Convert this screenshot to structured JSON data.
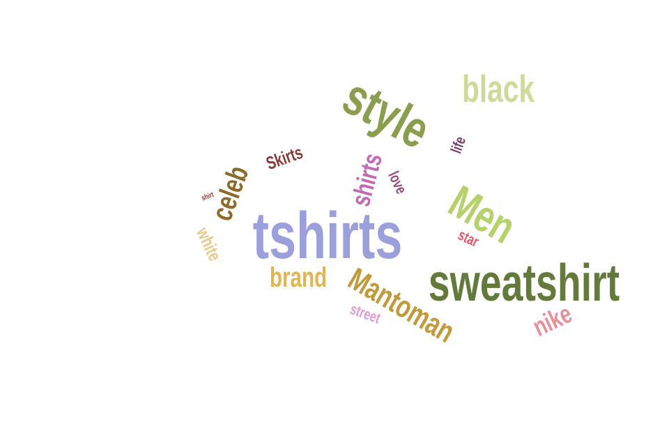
{
  "chart_data": {
    "type": "wordcloud",
    "words": [
      {
        "text": "tshirts",
        "weight": 95,
        "color": "#9b9fdc"
      },
      {
        "text": "sweatshirt",
        "weight": 75,
        "color": "#647a3a"
      },
      {
        "text": "style",
        "weight": 75,
        "color": "#8a9e4e"
      },
      {
        "text": "Men",
        "weight": 65,
        "color": "#b5d16a"
      },
      {
        "text": "black",
        "weight": 55,
        "color": "#cfd99a"
      },
      {
        "text": "Mantoman",
        "weight": 45,
        "color": "#c39a3a"
      },
      {
        "text": "brand",
        "weight": 40,
        "color": "#e0b552"
      },
      {
        "text": "celeb",
        "weight": 42,
        "color": "#8b6a2a"
      },
      {
        "text": "shirts",
        "weight": 38,
        "color": "#c46ab4"
      },
      {
        "text": "nike",
        "weight": 38,
        "color": "#e8909a"
      },
      {
        "text": "Skirts",
        "weight": 26,
        "color": "#8b3a3a"
      },
      {
        "text": "white",
        "weight": 26,
        "color": "#e8c98a"
      },
      {
        "text": "street",
        "weight": 22,
        "color": "#e29ad4"
      },
      {
        "text": "love",
        "weight": 22,
        "color": "#9a4a7a"
      },
      {
        "text": "life",
        "weight": 22,
        "color": "#7a3a6a"
      },
      {
        "text": "star",
        "weight": 22,
        "color": "#d85a6a"
      },
      {
        "text": "shirt",
        "weight": 11,
        "color": "#9a3a3a"
      }
    ]
  }
}
